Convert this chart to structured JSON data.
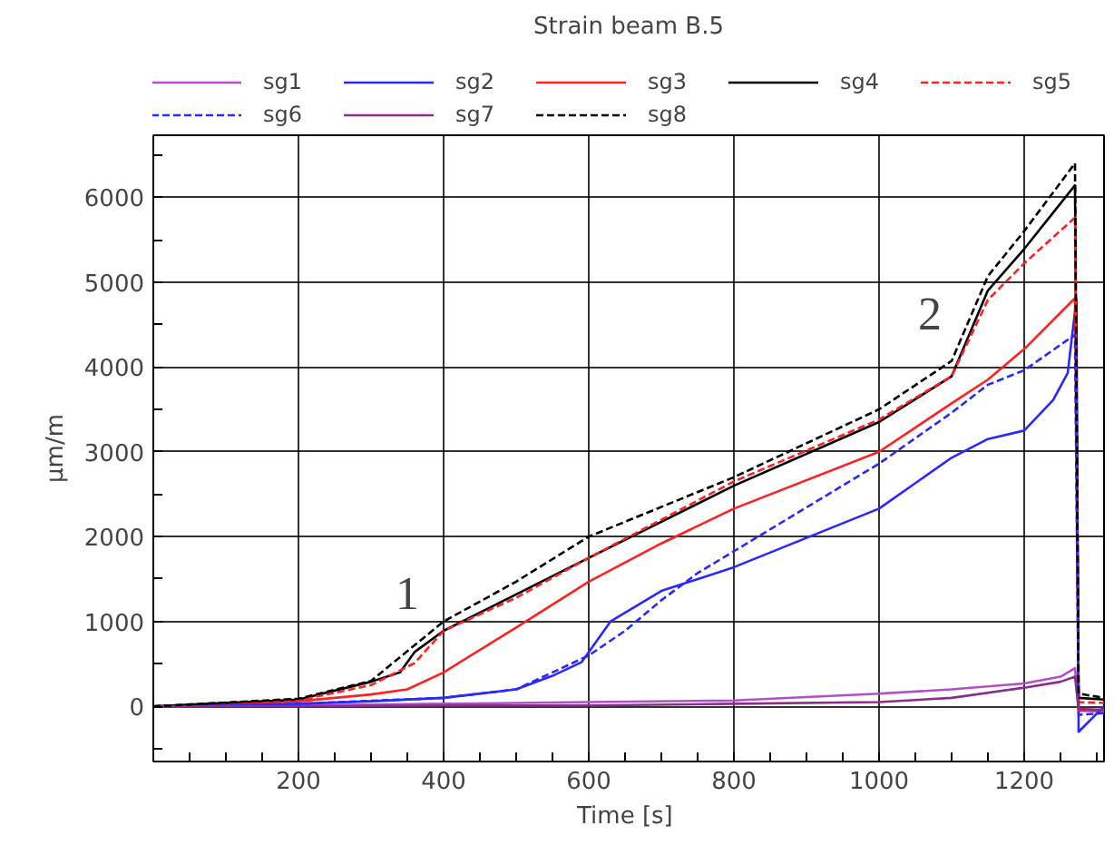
{
  "chart_data": {
    "type": "line",
    "title": "Strain beam B.5",
    "xlabel": "Time  [s]",
    "ylabel": "μm/m",
    "xlim": [
      0,
      1310
    ],
    "ylim": [
      -650,
      6730
    ],
    "xticks": [
      {
        "value": 50,
        "label": null
      },
      {
        "value": 100,
        "label": null
      },
      {
        "value": 150,
        "label": null
      },
      200,
      {
        "value": 250,
        "label": null
      },
      {
        "value": 300,
        "label": null
      },
      {
        "value": 350,
        "label": null
      },
      400,
      {
        "value": 450,
        "label": null
      },
      {
        "value": 500,
        "label": null
      },
      {
        "value": 550,
        "label": null
      },
      600,
      {
        "value": 650,
        "label": null
      },
      {
        "value": 700,
        "label": null
      },
      {
        "value": 750,
        "label": null
      },
      800,
      {
        "value": 850,
        "label": null
      },
      {
        "value": 900,
        "label": null
      },
      {
        "value": 950,
        "label": null
      },
      1000,
      {
        "value": 1050,
        "label": null
      },
      {
        "value": 1100,
        "label": null
      },
      {
        "value": 1150,
        "label": null
      },
      1200,
      {
        "value": 1250,
        "label": null
      },
      {
        "value": 1300,
        "label": null
      }
    ],
    "yticks": [
      {
        "value": -500,
        "label": null
      },
      0,
      {
        "value": 500,
        "label": null
      },
      1000,
      {
        "value": 1500,
        "label": null
      },
      2000,
      {
        "value": 2500,
        "label": null
      },
      3000,
      {
        "value": 3500,
        "label": null
      },
      4000,
      {
        "value": 4500,
        "label": null
      },
      5000,
      {
        "value": 5500,
        "label": null
      },
      6000,
      {
        "value": 6500,
        "label": null
      }
    ],
    "grid": true,
    "legend": "top",
    "marker": "none",
    "annotations": [
      "1",
      "2"
    ],
    "series": [
      {
        "name": "sg1",
        "color": "#b050c8",
        "line_style": "solid",
        "x": [
          0,
          200,
          400,
          600,
          800,
          1000,
          1100,
          1200,
          1250,
          1270,
          1275,
          1310
        ],
        "values": [
          0,
          10,
          30,
          50,
          70,
          150,
          200,
          270,
          350,
          450,
          -50,
          -60
        ]
      },
      {
        "name": "sg2",
        "color": "#2828ff",
        "line_style": "solid",
        "x": [
          0,
          200,
          300,
          400,
          500,
          550,
          590,
          600,
          630,
          700,
          800,
          1000,
          1100,
          1150,
          1200,
          1240,
          1260,
          1272,
          1275,
          1310
        ],
        "values": [
          0,
          30,
          60,
          100,
          200,
          360,
          520,
          640,
          1000,
          1360,
          1640,
          2330,
          2930,
          3150,
          3250,
          3610,
          3930,
          4800,
          -300,
          0
        ]
      },
      {
        "name": "sg3",
        "color": "#ff2020",
        "line_style": "solid",
        "x": [
          0,
          200,
          300,
          350,
          400,
          500,
          600,
          700,
          800,
          1000,
          1100,
          1150,
          1200,
          1270,
          1275,
          1310
        ],
        "values": [
          0,
          60,
          140,
          200,
          400,
          930,
          1470,
          1920,
          2330,
          3000,
          3570,
          3850,
          4210,
          4810,
          -50,
          -40
        ]
      },
      {
        "name": "sg4",
        "color": "#000000",
        "line_style": "solid",
        "x": [
          0,
          200,
          300,
          340,
          360,
          400,
          500,
          600,
          800,
          1000,
          1100,
          1150,
          1200,
          1270,
          1275,
          1310
        ],
        "values": [
          0,
          80,
          290,
          400,
          640,
          890,
          1320,
          1750,
          2600,
          3350,
          3890,
          4900,
          5390,
          6140,
          100,
          80
        ]
      },
      {
        "name": "sg5",
        "color": "#ff2020",
        "line_style": "dashed",
        "x": [
          0,
          200,
          300,
          360,
          400,
          500,
          600,
          800,
          1000,
          1100,
          1150,
          1200,
          1270,
          1275,
          1310
        ],
        "values": [
          0,
          70,
          250,
          510,
          890,
          1280,
          1750,
          2650,
          3380,
          3890,
          4790,
          5220,
          5760,
          50,
          40
        ]
      },
      {
        "name": "sg6",
        "color": "#2828ff",
        "line_style": "dashed",
        "x": [
          0,
          200,
          400,
          500,
          600,
          650,
          700,
          750,
          1000,
          1100,
          1150,
          1200,
          1270,
          1275,
          1310
        ],
        "values": [
          0,
          30,
          100,
          200,
          600,
          890,
          1250,
          1570,
          2860,
          3460,
          3790,
          3960,
          4380,
          -100,
          -80
        ]
      },
      {
        "name": "sg7",
        "color": "#8b2d8b",
        "line_style": "solid",
        "x": [
          0,
          200,
          400,
          600,
          800,
          1000,
          1100,
          1200,
          1250,
          1270,
          1275,
          1310
        ],
        "values": [
          0,
          0,
          10,
          10,
          30,
          50,
          100,
          220,
          290,
          350,
          -30,
          -40
        ]
      },
      {
        "name": "sg8",
        "color": "#000000",
        "line_style": "dashed",
        "x": [
          0,
          200,
          300,
          400,
          500,
          600,
          800,
          1000,
          1100,
          1150,
          1200,
          1270,
          1275,
          1310
        ],
        "values": [
          0,
          90,
          300,
          1000,
          1470,
          2000,
          2700,
          3500,
          4070,
          5070,
          5600,
          6400,
          150,
          100
        ]
      }
    ]
  }
}
